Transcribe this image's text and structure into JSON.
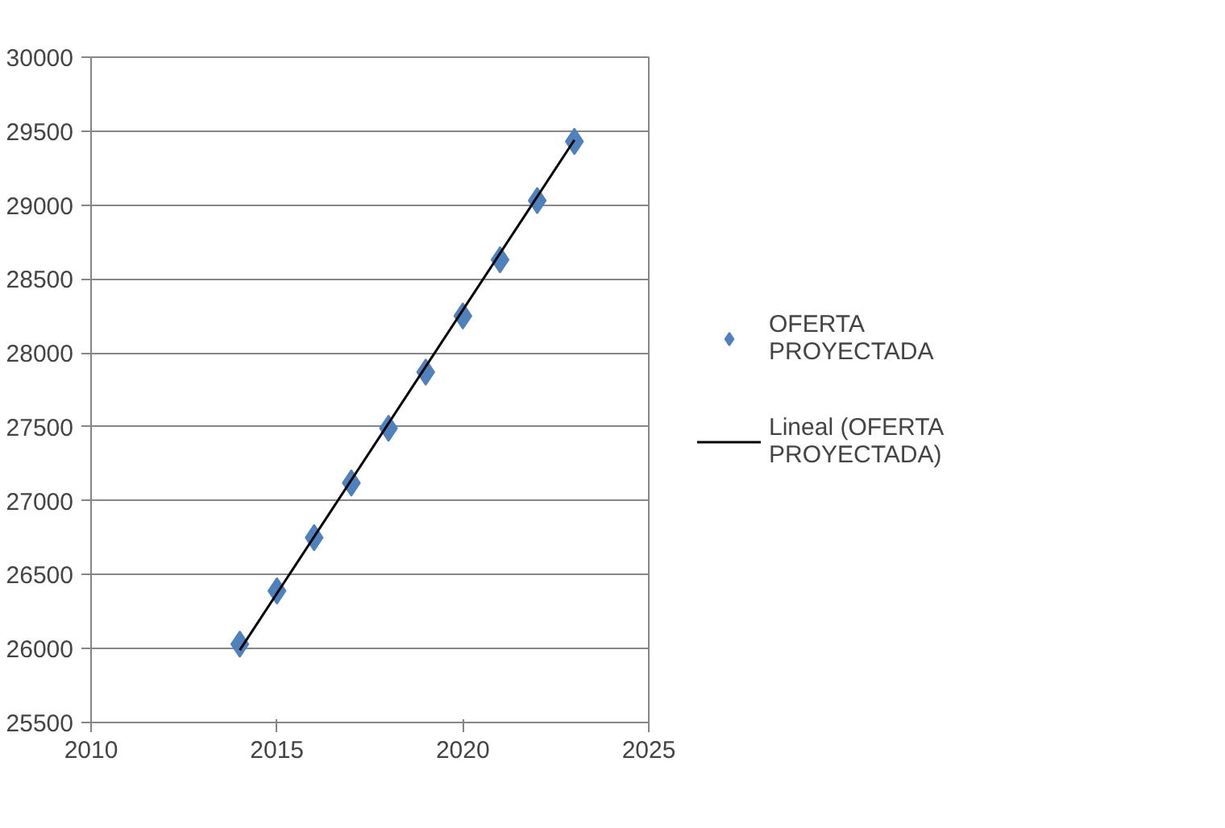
{
  "chart_data": {
    "type": "scatter",
    "x": [
      2014,
      2015,
      2016,
      2017,
      2018,
      2019,
      2020,
      2021,
      2022,
      2023
    ],
    "series": [
      {
        "name": "OFERTA PROYECTADA",
        "color": "#4f81bd",
        "marker": "diamond",
        "values": [
          26030,
          26390,
          26750,
          27120,
          27490,
          27870,
          28250,
          28630,
          29030,
          29430
        ]
      },
      {
        "name": "Lineal (OFERTA PROYECTADA)",
        "color": "#000000",
        "type": "line",
        "marker": "none",
        "x": [
          2014,
          2023
        ],
        "values": [
          25990,
          29440
        ]
      }
    ],
    "xlim": [
      2010,
      2025
    ],
    "xticks": [
      2010,
      2015,
      2020,
      2025
    ],
    "ylim": [
      25500,
      30000
    ],
    "yticks": [
      25500,
      26000,
      26500,
      27000,
      27500,
      28000,
      28500,
      29000,
      29500,
      30000
    ],
    "grid": "y",
    "legend": "right"
  }
}
